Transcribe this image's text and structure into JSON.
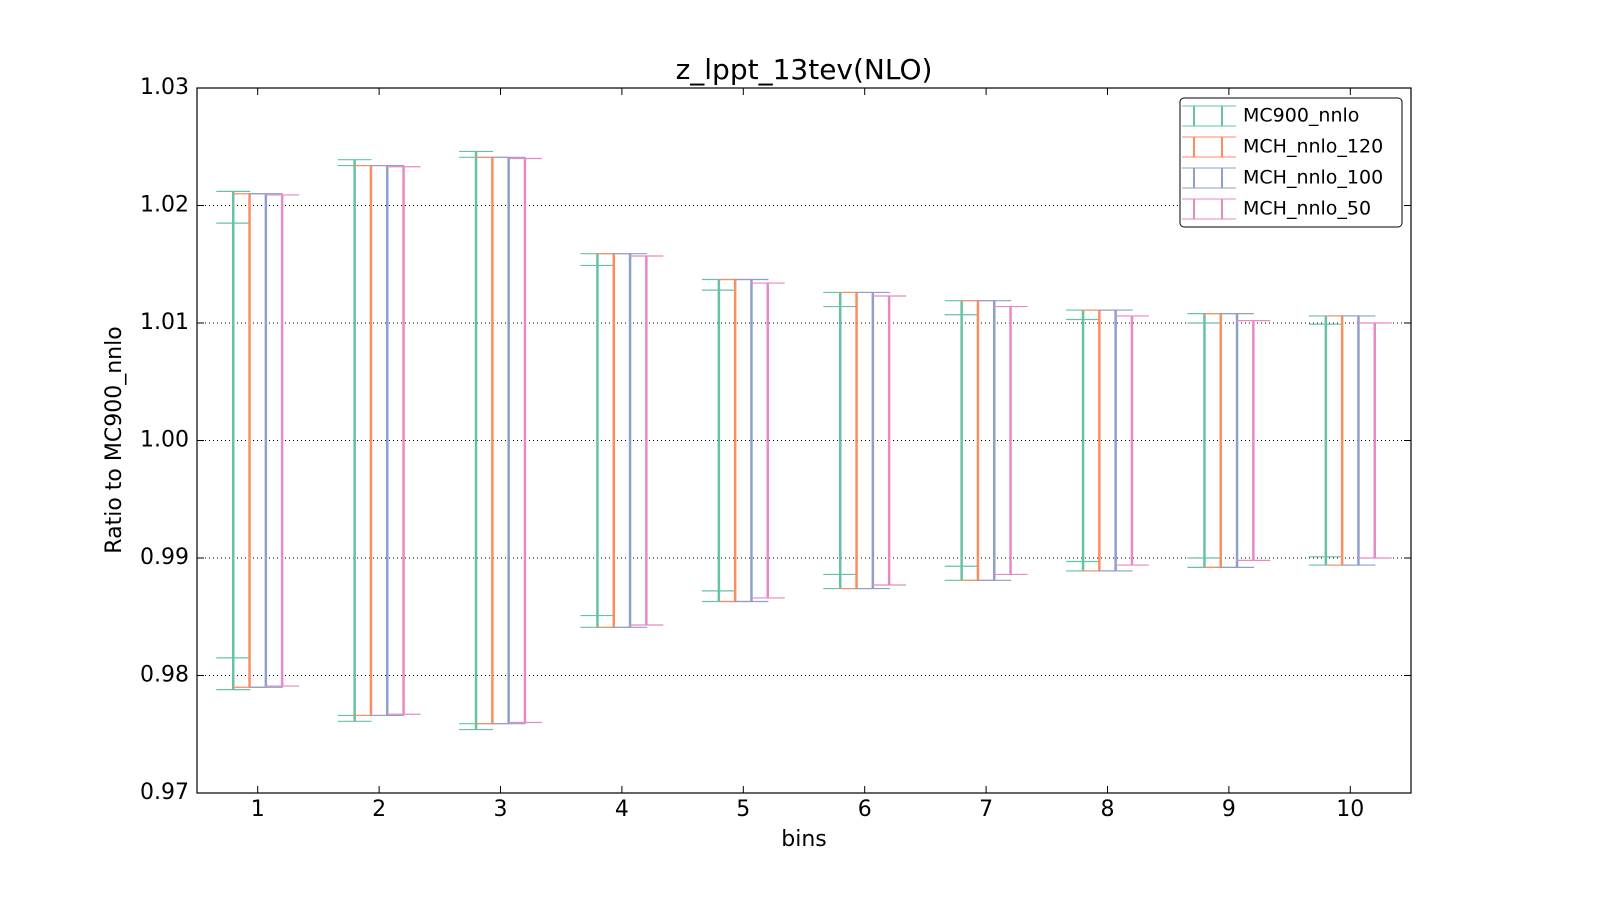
{
  "chart_data": {
    "type": "errorbar",
    "title": "z_lppt_13tev(NLO)",
    "xlabel": "bins",
    "ylabel": "Ratio to MC900_nnlo",
    "x": [
      1,
      2,
      3,
      4,
      5,
      6,
      7,
      8,
      9,
      10
    ],
    "xlim": [
      0.5,
      10.5
    ],
    "xticks": [
      1,
      2,
      3,
      4,
      5,
      6,
      7,
      8,
      9,
      10
    ],
    "ylim": [
      0.97,
      1.03
    ],
    "yticks": [
      0.97,
      0.98,
      0.99,
      {
        "value": 1,
        "label": "1.00"
      },
      1.01,
      1.02,
      1.03
    ],
    "grid": true,
    "legend": "upper right",
    "series": [
      {
        "name": "MC900_nnlo",
        "color": "#66c2a5",
        "values": [
          1,
          1,
          1,
          1,
          1,
          1,
          1,
          1,
          1,
          1
        ],
        "errors": [
          0.0212,
          0.0239,
          0.0246,
          0.0159,
          0.0137,
          0.0126,
          0.0119,
          0.0111,
          0.0108,
          0.0106
        ],
        "inner_errors": [
          0.0185,
          0.0234,
          0.0241,
          0.0149,
          0.0128,
          0.0114,
          0.0107,
          0.0103,
          0.01,
          0.0099
        ]
      },
      {
        "name": "MCH_nnlo_120",
        "color": "#fc8d62",
        "values": [
          1,
          1,
          1,
          1,
          1,
          1,
          1,
          1,
          1,
          1
        ],
        "errors": [
          0.021,
          0.0234,
          0.0241,
          0.0159,
          0.0137,
          0.0126,
          0.0119,
          0.0111,
          0.0108,
          0.0106
        ]
      },
      {
        "name": "MCH_nnlo_100",
        "color": "#8da0cb",
        "values": [
          1,
          1,
          1,
          1,
          1,
          1,
          1,
          1,
          1,
          1
        ],
        "errors": [
          0.021,
          0.0234,
          0.0241,
          0.0159,
          0.0137,
          0.0126,
          0.0119,
          0.0111,
          0.0108,
          0.0106
        ]
      },
      {
        "name": "MCH_nnlo_50",
        "color": "#e78ac3",
        "values": [
          1,
          1,
          1,
          1,
          1,
          1,
          1,
          1,
          1,
          1
        ],
        "errors": [
          0.0209,
          0.0233,
          0.024,
          0.0157,
          0.0134,
          0.0123,
          0.0114,
          0.0106,
          0.0102,
          0.01
        ]
      }
    ]
  }
}
